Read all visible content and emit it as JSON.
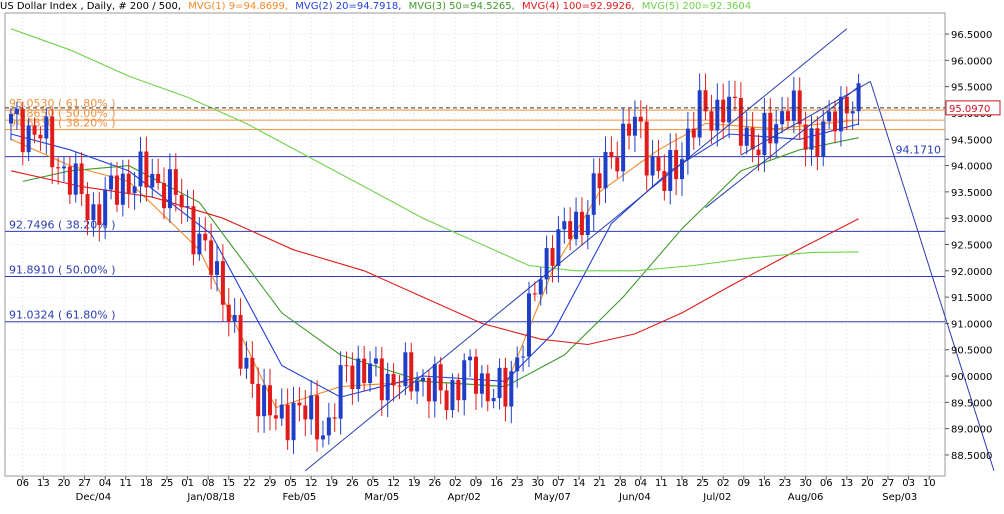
{
  "colors": {
    "background": "#ffffff",
    "grid": "#c8c8c8",
    "up": "#1f3fc8",
    "down": "#e01b1b",
    "mvg1": "#f08a28",
    "mvg2": "#2340d8",
    "mvg3": "#3f9a2c",
    "mvg4": "#e01b1b",
    "mvg5": "#6fd24a",
    "fib_upper": "#f09040",
    "fib_lower": "#2a3cb0",
    "trend": "#2a3cb0",
    "last_price": "#d01020"
  },
  "header": {
    "title": "US Dollar Index , Daily, # 200 / 500,",
    "mvg1": "MVG(1) 9=94.8699,",
    "mvg2": "MVG(2) 20=94.7918,",
    "mvg3": "MVG(3) 50=94.5265,",
    "mvg4": "MVG(4) 100=92.9926,",
    "mvg5": "MVG(5) 200=92.3604"
  },
  "chart_data": {
    "type": "candlestick",
    "title": "US Dollar Index , Daily, # 200 / 500",
    "ylim": [
      88.1,
      96.9
    ],
    "y_ticks": [
      "88.5000",
      "89.0000",
      "89.5000",
      "90.0000",
      "90.5000",
      "91.0000",
      "91.5000",
      "92.0000",
      "92.5000",
      "93.0000",
      "93.5000",
      "94.0000",
      "94.5000",
      "95.0000",
      "95.5000",
      "96.0000",
      "96.5000"
    ],
    "x_tick_labels": [
      "06",
      "13",
      "20",
      "27",
      "04",
      "11",
      "18",
      "25",
      "01",
      "08",
      "15",
      "22",
      "29",
      "05",
      "12",
      "19",
      "26",
      "05",
      "12",
      "19",
      "26",
      "02",
      "09",
      "16",
      "23",
      "30",
      "07",
      "14",
      "21",
      "28",
      "04",
      "11",
      "18",
      "25",
      "02",
      "09",
      "16",
      "23",
      "30",
      "06",
      "13",
      "20",
      "27",
      "03",
      "10"
    ],
    "x_month_labels": [
      "Dec/04",
      "Jan/08/18",
      "Feb/05",
      "Mar/05",
      "Apr/02",
      "May/07",
      "Jun/04",
      "Jul/02",
      "Aug/06",
      "Sep/03"
    ],
    "last_price": "95.0970",
    "horizontal_levels": [
      {
        "value": 95.053,
        "label": "95.0530 ( 61.80% )",
        "color": "#f09040"
      },
      {
        "value": 94.865,
        "label": "94.8650 ( 50.00% )",
        "color": "#f09040"
      },
      {
        "value": 94.683,
        "label": "94.6830 ( 38.20% )",
        "color": "#f09040"
      },
      {
        "value": 94.171,
        "label": "94.1710",
        "color": "#2a3cb0"
      },
      {
        "value": 92.7496,
        "label": "92.7496 ( 38.20% )",
        "color": "#2a3cb0"
      },
      {
        "value": 91.891,
        "label": "91.8910 ( 50.00% )",
        "color": "#2a3cb0"
      },
      {
        "value": 91.0324,
        "label": "91.0324 ( 61.80% )",
        "color": "#2a3cb0"
      }
    ],
    "candle_anchors": [
      {
        "d": 0,
        "c": 94.8
      },
      {
        "d": 5,
        "c": 94.6
      },
      {
        "d": 9,
        "c": 93.9
      },
      {
        "d": 14,
        "c": 93.1
      },
      {
        "d": 19,
        "c": 93.7
      },
      {
        "d": 24,
        "c": 93.8
      },
      {
        "d": 29,
        "c": 93.3
      },
      {
        "d": 33,
        "c": 92.3
      },
      {
        "d": 36,
        "c": 91.7
      },
      {
        "d": 39,
        "c": 90.3
      },
      {
        "d": 45,
        "c": 89.1
      },
      {
        "d": 48,
        "c": 89.4
      },
      {
        "d": 54,
        "c": 89.0
      },
      {
        "d": 57,
        "c": 90.2
      },
      {
        "d": 62,
        "c": 90.0
      },
      {
        "d": 66,
        "c": 89.9
      },
      {
        "d": 69,
        "c": 90.0
      },
      {
        "d": 74,
        "c": 89.6
      },
      {
        "d": 77,
        "c": 90.1
      },
      {
        "d": 81,
        "c": 89.8
      },
      {
        "d": 84,
        "c": 89.6
      },
      {
        "d": 87,
        "c": 90.8
      },
      {
        "d": 92,
        "c": 92.6
      },
      {
        "d": 96,
        "c": 92.8
      },
      {
        "d": 102,
        "c": 94.2
      },
      {
        "d": 106,
        "c": 94.8
      },
      {
        "d": 111,
        "c": 93.6
      },
      {
        "d": 117,
        "c": 95.0
      },
      {
        "d": 122,
        "c": 95.1
      },
      {
        "d": 127,
        "c": 94.3
      },
      {
        "d": 132,
        "c": 95.2
      },
      {
        "d": 135,
        "c": 94.5
      },
      {
        "d": 139,
        "c": 94.7
      },
      {
        "d": 142,
        "c": 95.3
      },
      {
        "d": 144,
        "c": 95.1
      }
    ],
    "series": [
      {
        "name": "MVG(1) 9",
        "color": "#f08a28",
        "points": [
          [
            0,
            94.5
          ],
          [
            10,
            94.0
          ],
          [
            20,
            93.7
          ],
          [
            32,
            92.4
          ],
          [
            45,
            89.4
          ],
          [
            56,
            89.8
          ],
          [
            70,
            89.9
          ],
          [
            84,
            89.8
          ],
          [
            92,
            92.0
          ],
          [
            100,
            93.5
          ],
          [
            110,
            94.3
          ],
          [
            118,
            94.8
          ],
          [
            130,
            94.7
          ],
          [
            144,
            94.87
          ]
        ]
      },
      {
        "name": "MVG(2) 20",
        "color": "#2340d8",
        "points": [
          [
            0,
            94.6
          ],
          [
            10,
            94.3
          ],
          [
            20,
            93.9
          ],
          [
            34,
            92.7
          ],
          [
            46,
            90.2
          ],
          [
            56,
            89.6
          ],
          [
            70,
            90.0
          ],
          [
            84,
            89.9
          ],
          [
            92,
            90.8
          ],
          [
            102,
            92.9
          ],
          [
            112,
            93.9
          ],
          [
            122,
            94.6
          ],
          [
            134,
            94.5
          ],
          [
            144,
            94.79
          ]
        ]
      },
      {
        "name": "MVG(3) 50",
        "color": "#3f9a2c",
        "points": [
          [
            2,
            93.7
          ],
          [
            10,
            93.9
          ],
          [
            20,
            94.0
          ],
          [
            32,
            93.3
          ],
          [
            46,
            91.2
          ],
          [
            56,
            90.4
          ],
          [
            70,
            89.9
          ],
          [
            84,
            89.8
          ],
          [
            94,
            90.4
          ],
          [
            104,
            91.5
          ],
          [
            114,
            92.8
          ],
          [
            124,
            93.9
          ],
          [
            134,
            94.3
          ],
          [
            144,
            94.53
          ]
        ]
      },
      {
        "name": "MVG(4) 100",
        "color": "#e01b1b",
        "points": [
          [
            0,
            93.9
          ],
          [
            12,
            93.6
          ],
          [
            24,
            93.4
          ],
          [
            36,
            93.0
          ],
          [
            48,
            92.4
          ],
          [
            60,
            92.0
          ],
          [
            70,
            91.5
          ],
          [
            80,
            91.0
          ],
          [
            90,
            90.7
          ],
          [
            98,
            90.6
          ],
          [
            106,
            90.8
          ],
          [
            114,
            91.2
          ],
          [
            122,
            91.7
          ],
          [
            132,
            92.3
          ],
          [
            144,
            92.99
          ]
        ]
      },
      {
        "name": "MVG(5) 200",
        "color": "#6fd24a",
        "points": [
          [
            0,
            96.6
          ],
          [
            10,
            96.2
          ],
          [
            20,
            95.7
          ],
          [
            30,
            95.3
          ],
          [
            40,
            94.8
          ],
          [
            50,
            94.2
          ],
          [
            60,
            93.6
          ],
          [
            70,
            93.0
          ],
          [
            80,
            92.5
          ],
          [
            88,
            92.1
          ],
          [
            96,
            92.0
          ],
          [
            106,
            92.0
          ],
          [
            116,
            92.1
          ],
          [
            126,
            92.25
          ],
          [
            136,
            92.35
          ],
          [
            144,
            92.36
          ]
        ]
      }
    ],
    "trendlines": [
      {
        "from": [
          50,
          88.2
        ],
        "to": [
          142,
          96.6
        ]
      },
      {
        "from": [
          118,
          93.2
        ],
        "to": [
          144,
          95.5
        ]
      },
      {
        "from": [
          124,
          94.2
        ],
        "to": [
          146,
          95.6
        ]
      },
      {
        "from": [
          146,
          95.6
        ],
        "to": [
          167,
          88.2
        ]
      }
    ]
  }
}
